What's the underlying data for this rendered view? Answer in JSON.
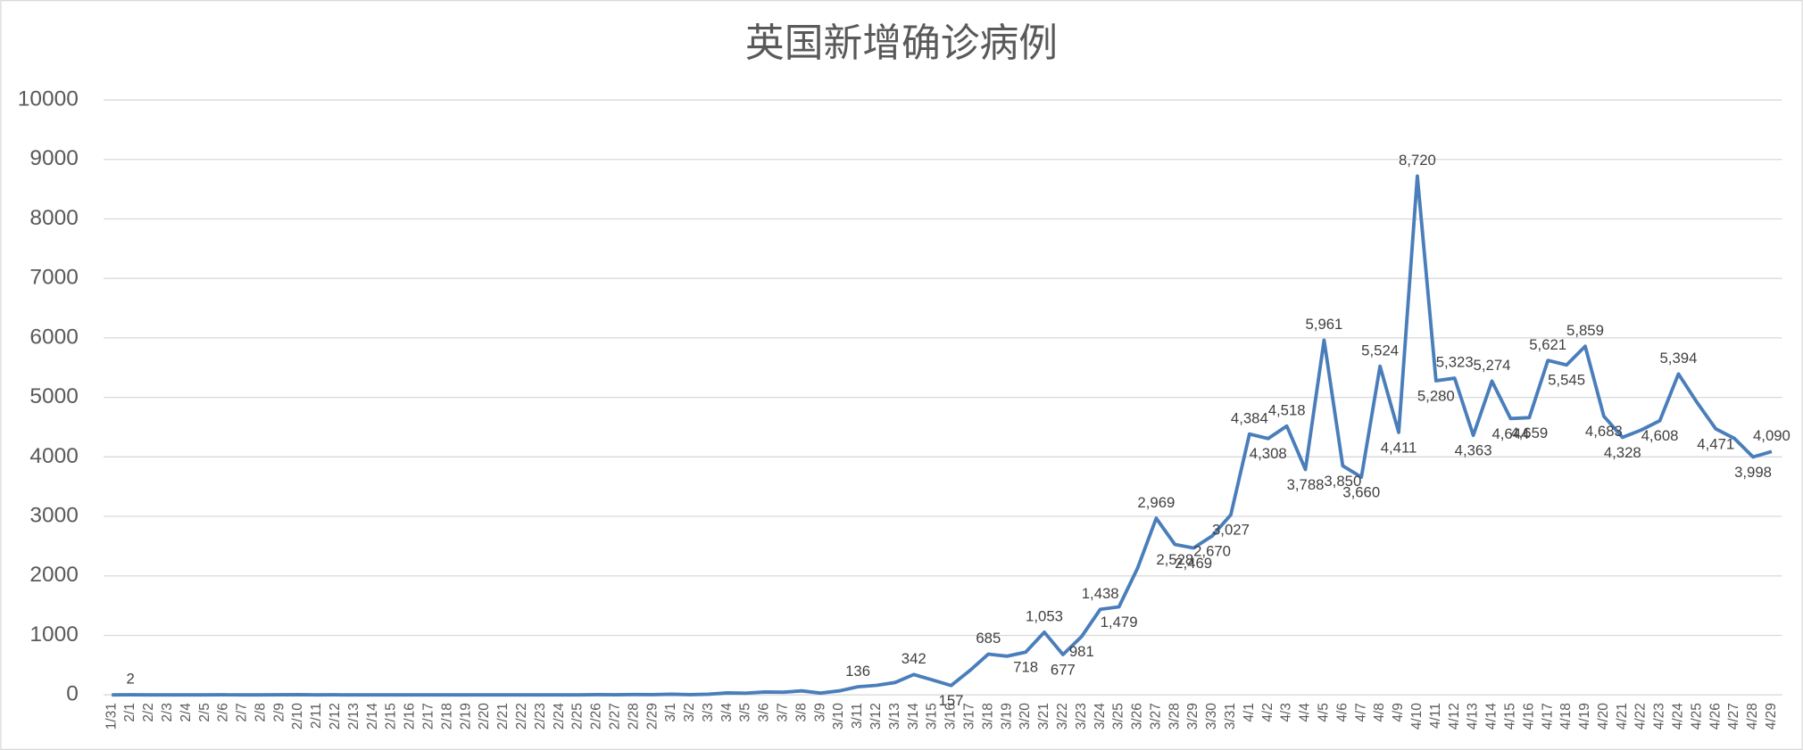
{
  "chart_data": {
    "type": "line",
    "title": "英国新增确诊病例",
    "color": "#4a7ebb",
    "grid": true,
    "ylim": [
      0,
      10000
    ],
    "yticks": [
      0,
      1000,
      2000,
      3000,
      4000,
      5000,
      6000,
      7000,
      8000,
      9000,
      10000
    ],
    "categories": [
      "1/31",
      "2/1",
      "2/2",
      "2/3",
      "2/4",
      "2/5",
      "2/6",
      "2/7",
      "2/8",
      "2/9",
      "2/10",
      "2/11",
      "2/12",
      "2/13",
      "2/14",
      "2/15",
      "2/16",
      "2/17",
      "2/18",
      "2/19",
      "2/20",
      "2/21",
      "2/22",
      "2/23",
      "2/24",
      "2/25",
      "2/26",
      "2/27",
      "2/28",
      "2/29",
      "3/1",
      "3/2",
      "3/3",
      "3/4",
      "3/5",
      "3/6",
      "3/7",
      "3/8",
      "3/9",
      "3/10",
      "3/11",
      "3/12",
      "3/13",
      "3/14",
      "3/15",
      "3/16",
      "3/17",
      "3/18",
      "3/19",
      "3/20",
      "3/21",
      "3/22",
      "3/23",
      "3/24",
      "3/25",
      "3/26",
      "3/27",
      "3/28",
      "3/29",
      "3/30",
      "3/31",
      "4/1",
      "4/2",
      "4/3",
      "4/4",
      "4/5",
      "4/6",
      "4/7",
      "4/8",
      "4/9",
      "4/10",
      "4/11",
      "4/12",
      "4/13",
      "4/14",
      "4/15",
      "4/16",
      "4/17",
      "4/18",
      "4/19",
      "4/20",
      "4/21",
      "4/22",
      "4/23",
      "4/24",
      "4/25",
      "4/26",
      "4/27",
      "4/28",
      "4/29"
    ],
    "values": [
      0,
      2,
      0,
      0,
      0,
      0,
      1,
      0,
      0,
      1,
      4,
      0,
      1,
      0,
      0,
      0,
      0,
      0,
      0,
      0,
      0,
      0,
      0,
      0,
      0,
      0,
      4,
      2,
      5,
      3,
      12,
      4,
      11,
      34,
      29,
      48,
      45,
      67,
      30,
      67,
      136,
      160,
      208,
      342,
      251,
      157,
      407,
      685,
      650,
      718,
      1053,
      677,
      981,
      1438,
      1479,
      2129,
      2969,
      2528,
      2469,
      2670,
      3027,
      4384,
      4308,
      4518,
      3788,
      5961,
      3850,
      3660,
      5524,
      4411,
      8720,
      5280,
      5323,
      4363,
      5274,
      4644,
      4659,
      5621,
      5545,
      5859,
      4683,
      4328,
      4451,
      4608,
      5394,
      4913,
      4471,
      4310,
      3998,
      4090
    ],
    "value_labels": [
      null,
      "2",
      null,
      null,
      null,
      null,
      null,
      null,
      null,
      null,
      null,
      null,
      null,
      null,
      null,
      null,
      null,
      null,
      null,
      null,
      null,
      null,
      null,
      null,
      null,
      null,
      null,
      null,
      null,
      null,
      null,
      null,
      null,
      null,
      null,
      null,
      null,
      null,
      null,
      null,
      "136",
      null,
      null,
      "342",
      null,
      "157",
      null,
      "685",
      null,
      "718",
      "1,053",
      "677",
      "981",
      "1,438",
      "1,479",
      null,
      "2,969",
      "2,528",
      "2,469",
      "2,670",
      "3,027",
      "4,384",
      "4,308",
      "4,518",
      "3,788",
      "5,961",
      "3,850",
      "3,660",
      "5,524",
      "4,411",
      "8,720",
      "5,280",
      "5,323",
      "4,363",
      "5,274",
      "4,644",
      "4,659",
      "5,621",
      "5,545",
      "5,859",
      "4,683",
      "4,328",
      null,
      "4,608",
      "5,394",
      null,
      "4,471",
      null,
      "3,998",
      "4,090"
    ]
  }
}
